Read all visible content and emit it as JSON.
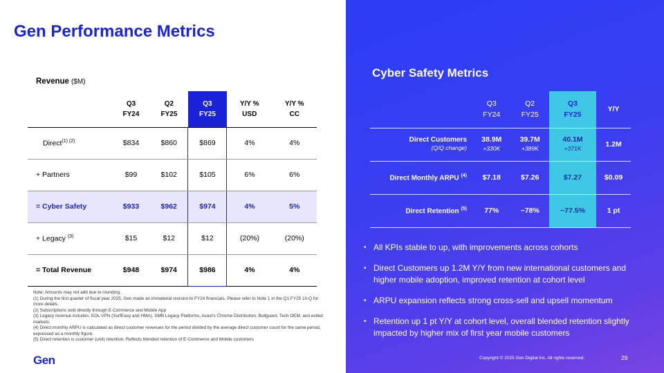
{
  "page_title": "Gen Performance Metrics",
  "revenue": {
    "caption": "Revenue",
    "unit": "($M)",
    "headers": [
      {
        "l1": "Q3",
        "l2": "FY24"
      },
      {
        "l1": "Q2",
        "l2": "FY25"
      },
      {
        "l1": "Q3",
        "l2": "FY25"
      },
      {
        "l1": "Y/Y %",
        "l2": "USD"
      },
      {
        "l1": "Y/Y %",
        "l2": "CC"
      }
    ],
    "rows": [
      {
        "label": "Direct",
        "sup": "(1) (2)",
        "values": [
          "$834",
          "$860",
          "$869",
          "4%",
          "4%"
        ]
      },
      {
        "label": "+ Partners",
        "sup": "",
        "values": [
          "$99",
          "$102",
          "$105",
          "6%",
          "6%"
        ]
      },
      {
        "label": "= Cyber Safety",
        "sup": "",
        "values": [
          "$933",
          "$962",
          "$974",
          "4%",
          "5%"
        ]
      },
      {
        "label": "+ Legacy",
        "sup": "(3)",
        "values": [
          "$15",
          "$12",
          "$12",
          "(20%)",
          "(20%)"
        ]
      },
      {
        "label": "= Total Revenue",
        "sup": "",
        "values": [
          "$948",
          "$974",
          "$986",
          "4%",
          "4%"
        ]
      }
    ]
  },
  "notes": [
    "Note: Amounts may not add due to rounding.",
    "(1) During the first quarter of fiscal year 2025, Gen made an immaterial revision to FY24 financials.  Please refer to Note 1 in the Q1 FY25 10-Q for more details.",
    "(2) Subscriptions sold directly through E-Commerce and Mobile App",
    "(3) Legacy revenue includes: EOL VPN (SurfEasy and HMA), SMB Legacy Platforms, Avast's Chrome Distribution, Bullguard, Tech OEM, and exited markets.",
    "(4) Direct monthly ARPU is calculated as direct customer revenues for the period divided by the average direct customer count for the same period, expressed as a monthly figure.",
    "(5) Direct retention is customer (unit) retention.  Reflects blended retention of  E-Commerce and Mobile customers"
  ],
  "logo_text": "Gen",
  "cyber_safety": {
    "title": "Cyber Safety Metrics",
    "headers": [
      {
        "l1": "Q3",
        "l2": "FY24"
      },
      {
        "l1": "Q2",
        "l2": "FY25"
      },
      {
        "l1": "Q3",
        "l2": "FY25"
      },
      {
        "l1": "Y/Y",
        "l2": ""
      }
    ],
    "rows": [
      {
        "label": "Direct Customers",
        "sub": "(Q/Q change)",
        "sup": "",
        "values": [
          "38.9M",
          "39.7M",
          "40.1M",
          "1.2M"
        ],
        "subs": [
          "+330K",
          "+389K",
          "+371K",
          ""
        ]
      },
      {
        "label": "Direct Monthly ARPU",
        "sub": "",
        "sup": "(4)",
        "values": [
          "$7.18",
          "$7.26",
          "$7.27",
          "$0.09"
        ],
        "subs": [
          "",
          "",
          "",
          ""
        ]
      },
      {
        "label": "Direct Retention",
        "sub": "",
        "sup": "(5)",
        "values": [
          "77%",
          "~78%",
          "~77.5%",
          "1 pt"
        ],
        "subs": [
          "",
          "",
          "",
          ""
        ]
      }
    ]
  },
  "bullets": [
    "All KPIs stable to up, with improvements across cohorts",
    "Direct Customers up 1.2M Y/Y from new international customers and higher mobile adoption, improved retention at cohort level",
    "ARPU expansion reflects strong cross-sell and upsell momentum",
    "Retention up 1 pt Y/Y at cohort level, overall blended retention slightly impacted by higher mix of first year mobile customers"
  ],
  "copyright": "Copyright © 2025 Gen Digital Inc. All rights reserved.",
  "page_number": "29",
  "colors": {
    "brand_blue": "#1a23d6",
    "highlight_cyan": "#3fc7e6",
    "cyber_row_bg": "#e8e6fb"
  }
}
